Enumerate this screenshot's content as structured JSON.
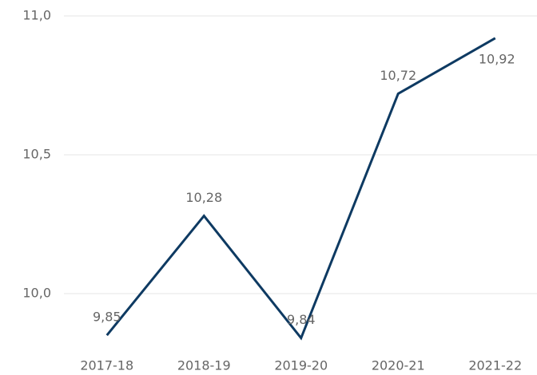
{
  "chart_data": {
    "type": "line",
    "categories": [
      "2017-18",
      "2018-19",
      "2019-20",
      "2020-21",
      "2021-22"
    ],
    "series": [
      {
        "color": "#0e3a62",
        "values": [
          9.85,
          10.28,
          9.84,
          10.72,
          10.92
        ],
        "value_labels": [
          "9,85",
          "10,28",
          "9,84",
          "10,72",
          "10,92"
        ]
      }
    ],
    "ylim": [
      9.8,
      11.0
    ],
    "yticks": [
      {
        "value": 10.0,
        "label": "10,0"
      },
      {
        "value": 10.5,
        "label": "10,5"
      },
      {
        "value": 11.0,
        "label": "11,0"
      }
    ],
    "grid": true
  }
}
